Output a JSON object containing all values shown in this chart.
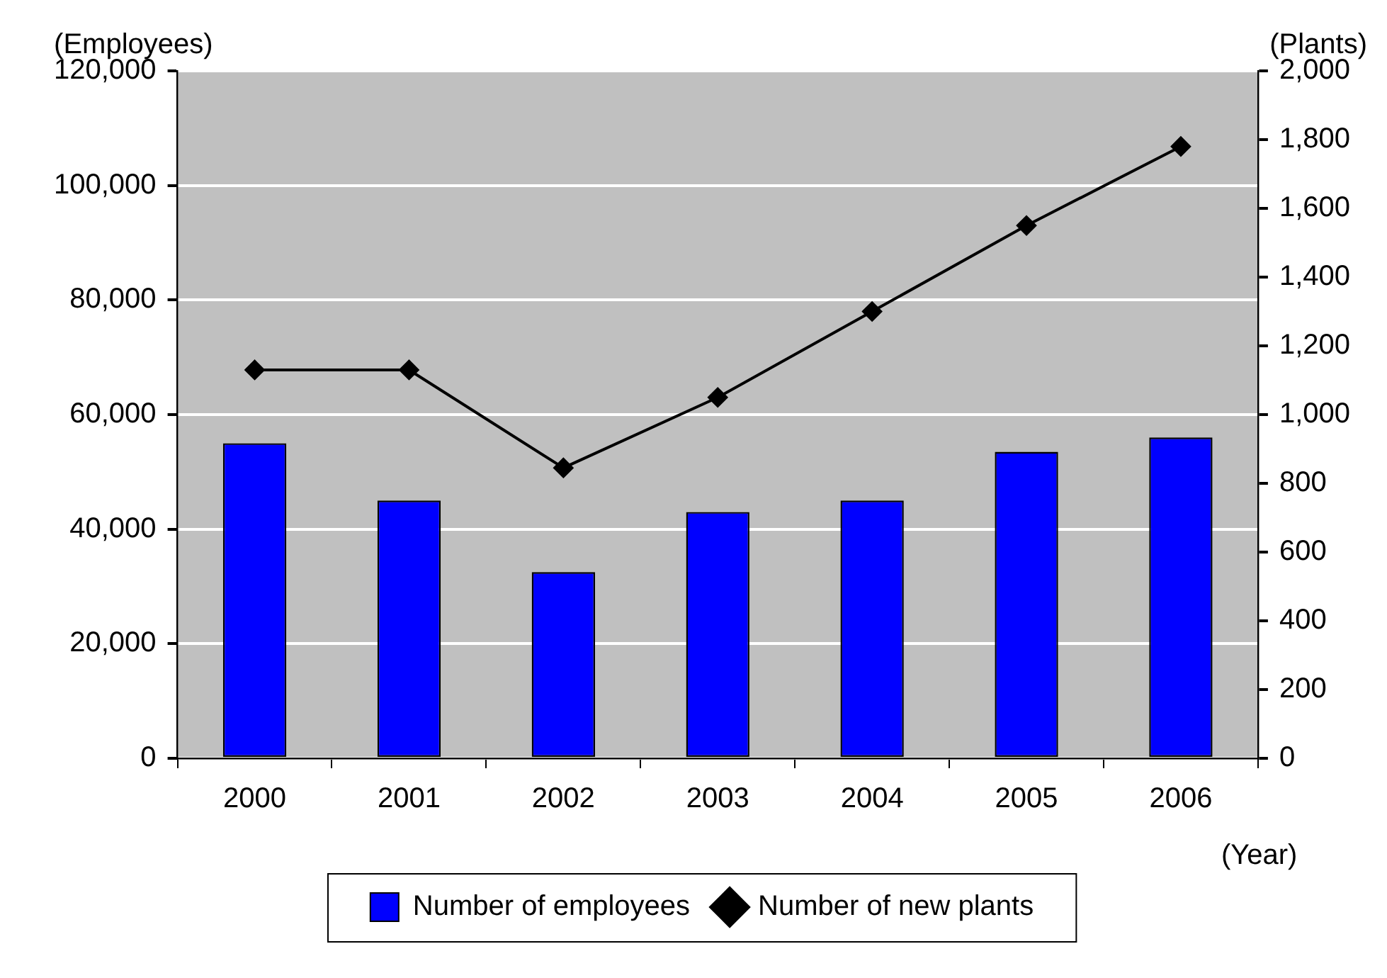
{
  "chart_data": {
    "type": "bar",
    "categories": [
      "2000",
      "2001",
      "2002",
      "2003",
      "2004",
      "2005",
      "2006"
    ],
    "series": [
      {
        "name": "Number of employees",
        "color": "#0000ff",
        "values": [
          55000,
          45000,
          32500,
          43000,
          45000,
          53500,
          56000
        ]
      },
      {
        "name": "Number of new plants",
        "type": "line",
        "axis": "y2",
        "color": "#000000",
        "marker": "diamond",
        "values": [
          1130,
          1130,
          845,
          1050,
          1300,
          1550,
          1780
        ]
      }
    ],
    "xlabel": "(Year)",
    "ylabel": "(Employees)",
    "y2label": "(Plants)",
    "ylim": [
      0,
      120000
    ],
    "yticks": [
      0,
      {
        "value": 20000,
        "label": "20,000"
      },
      {
        "value": 40000,
        "label": "40,000"
      },
      {
        "value": 60000,
        "label": "60,000"
      },
      {
        "value": 80000,
        "label": "80,000"
      },
      {
        "value": 100000,
        "label": "100,000"
      },
      {
        "value": 120000,
        "label": "120,000"
      }
    ],
    "y2lim": [
      0,
      2000
    ],
    "y2ticks": [
      0,
      200,
      400,
      600,
      800,
      {
        "value": 1000,
        "label": "1,000"
      },
      {
        "value": 1200,
        "label": "1,200"
      },
      {
        "value": 1400,
        "label": "1,400"
      },
      {
        "value": 1600,
        "label": "1,600"
      },
      {
        "value": 1800,
        "label": "1,800"
      },
      {
        "value": 2000,
        "label": "2,000"
      }
    ],
    "grid": "y",
    "legend": "bottom"
  }
}
